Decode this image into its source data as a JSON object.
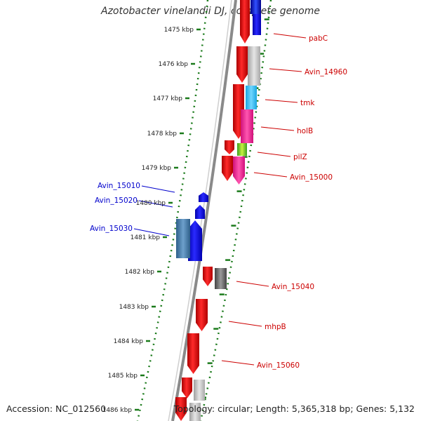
{
  "title": "Azotobacter vinelandii DJ, complete genome",
  "footer": {
    "accession": "Accession: NC_012560",
    "summary": "Topology: circular; Length: 5,365,318 bp; Genes: 5,132"
  },
  "ruler": {
    "labels": [
      "1475 kbp",
      "1476 kbp",
      "1477 kbp",
      "1478 kbp",
      "1479 kbp",
      "1480 kbp",
      "1481 kbp",
      "1482 kbp",
      "1483 kbp",
      "1484 kbp",
      "1485 kbp",
      "1486 kbp"
    ],
    "tick_color": "#1a7a1a"
  },
  "colors": {
    "backbone": "#8a8a8a",
    "forward_label": "#cc0000",
    "reverse_label": "#0000cc"
  },
  "gene_labels": {
    "forward": [
      "pabC",
      "Avin_14960",
      "tmk",
      "holB",
      "pilZ",
      "Avin_15000",
      "Avin_15040",
      "mhpB",
      "Avin_15060"
    ],
    "reverse": [
      "Avin_15010",
      "Avin_15020",
      "Avin_15030"
    ]
  }
}
